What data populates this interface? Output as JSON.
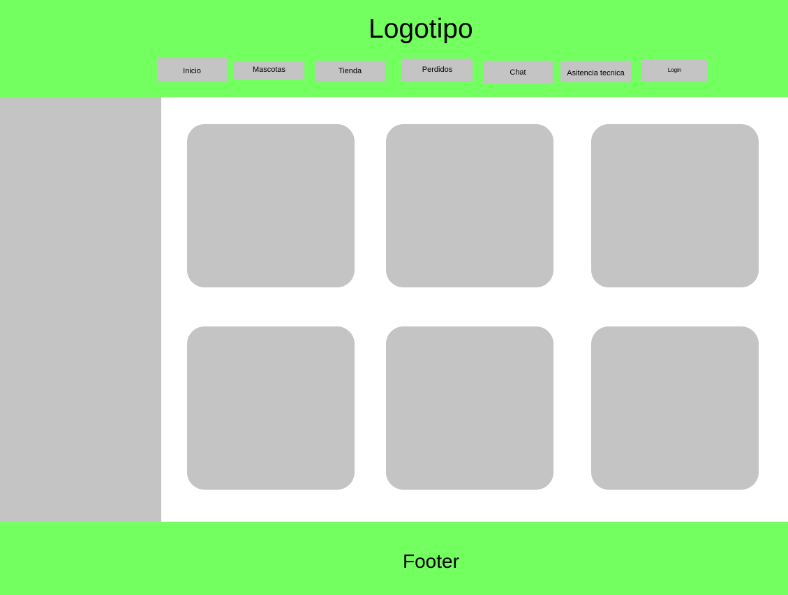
{
  "colors": {
    "header_bg": "#72ff5f",
    "footer_bg": "#72ff5f",
    "placeholder_gray": "#c4c4c4",
    "content_bg": "#ffffff",
    "text": "#000000"
  },
  "header": {
    "logo": "Logotipo",
    "nav": {
      "inicio": "Inicio",
      "mascotas": "Mascotas",
      "tienda": "Tienda",
      "perdidos": "Perdidos",
      "chat": "Chat",
      "asistencia": "Asitencia tecnica",
      "login": "Login"
    }
  },
  "footer": {
    "text": "Footer"
  }
}
